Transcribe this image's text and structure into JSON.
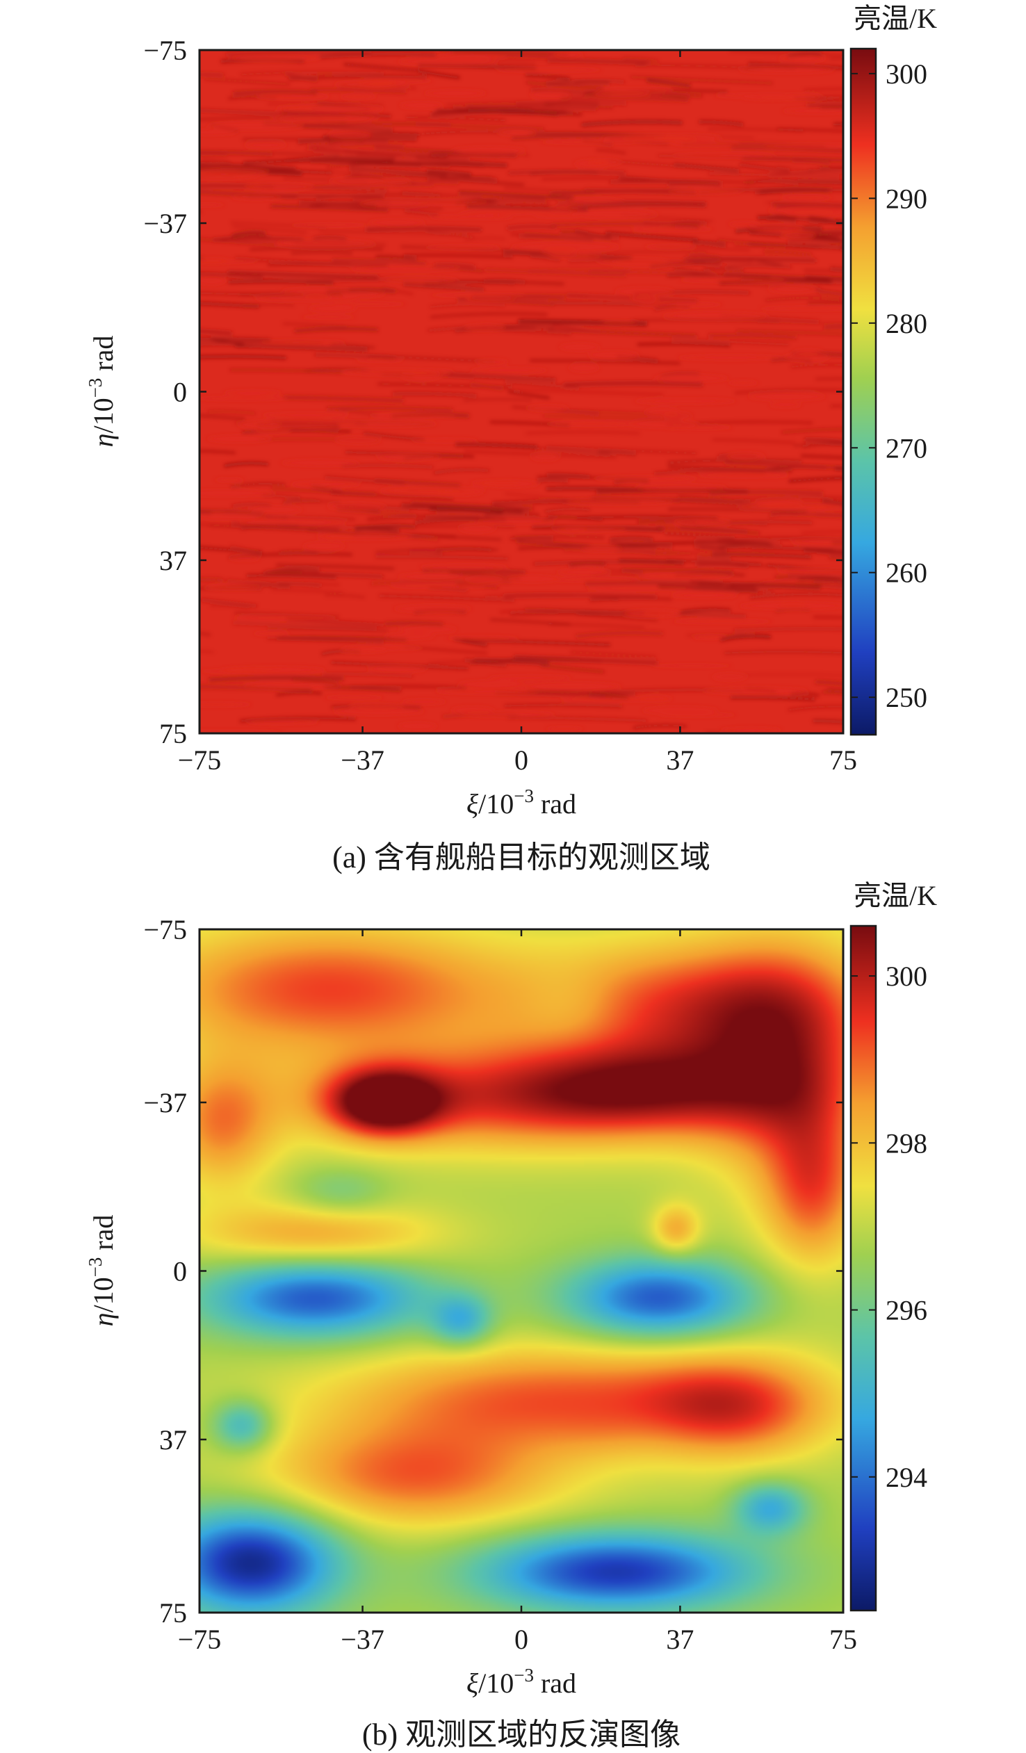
{
  "chart_data": [
    {
      "type": "heatmap",
      "caption": "(a) 含有舰船目标的观测区域",
      "xlabel_sym": "ξ",
      "ylabel_sym": "η",
      "axis_unit": "/10",
      "axis_exp": "−3",
      "axis_unit_tail": " rad",
      "xticks": [
        "−75",
        "−37",
        "0",
        "37",
        "75"
      ],
      "xtick_values": [
        -75,
        -37,
        0,
        37,
        75
      ],
      "yticks": [
        "−75",
        "−37",
        "0",
        "37",
        "75"
      ],
      "ytick_values": [
        -75,
        -37,
        0,
        37,
        75
      ],
      "xlim": [
        -75,
        75
      ],
      "ylim": [
        -75,
        75
      ],
      "y_inverted": true,
      "colorbar_title": "亮温/K",
      "colorbar_ticks": [
        "250",
        "260",
        "270",
        "280",
        "290",
        "300"
      ],
      "colorbar_tick_values": [
        250,
        260,
        270,
        280,
        290,
        300
      ],
      "colorbar_range": [
        247,
        302
      ],
      "colormap": "jet",
      "field_range": [
        293,
        301
      ],
      "field_description": "sea-surface texture, mostly red (~295 K) with darker red streaks"
    },
    {
      "type": "heatmap",
      "caption": "(b) 观测区域的反演图像",
      "xlabel_sym": "ξ",
      "ylabel_sym": "η",
      "axis_unit": "/10",
      "axis_exp": "−3",
      "axis_unit_tail": " rad",
      "xticks": [
        "−75",
        "−37",
        "0",
        "37",
        "75"
      ],
      "xtick_values": [
        -75,
        -37,
        0,
        37,
        75
      ],
      "yticks": [
        "−75",
        "−37",
        "0",
        "37",
        "75"
      ],
      "ytick_values": [
        -75,
        -37,
        0,
        37,
        75
      ],
      "xlim": [
        -75,
        75
      ],
      "ylim": [
        -75,
        75
      ],
      "y_inverted": true,
      "colorbar_title": "亮温/K",
      "colorbar_ticks": [
        "294",
        "296",
        "298",
        "300"
      ],
      "colorbar_tick_values": [
        294,
        296,
        298,
        300
      ],
      "colorbar_range": [
        292.4,
        300.6
      ],
      "colormap": "jet",
      "background_value": 296.8,
      "blobs": [
        {
          "xi": -45,
          "eta": -62,
          "value": 299.3,
          "sx": 30,
          "sy": 10
        },
        {
          "xi": 40,
          "eta": -58,
          "value": 299.3,
          "sx": 26,
          "sy": 10
        },
        {
          "xi": 62,
          "eta": -45,
          "value": 299.1,
          "sx": 14,
          "sy": 18
        },
        {
          "xi": -5,
          "eta": -38,
          "value": 299.2,
          "sx": 34,
          "sy": 8
        },
        {
          "xi": -32,
          "eta": -37,
          "value": 300.5,
          "sx": 9,
          "sy": 5
        },
        {
          "xi": 30,
          "eta": -40,
          "value": 299.0,
          "sx": 22,
          "sy": 7
        },
        {
          "xi": -70,
          "eta": -32,
          "value": 298.6,
          "sx": 9,
          "sy": 10
        },
        {
          "xi": 68,
          "eta": -18,
          "value": 298.8,
          "sx": 8,
          "sy": 12
        },
        {
          "xi": -42,
          "eta": -17,
          "value": 296.0,
          "sx": 8,
          "sy": 4
        },
        {
          "xi": 12,
          "eta": -58,
          "value": 296.3,
          "sx": 8,
          "sy": 6
        },
        {
          "xi": -48,
          "eta": -8,
          "value": 298.4,
          "sx": 20,
          "sy": 5
        },
        {
          "xi": 36,
          "eta": -9,
          "value": 298.3,
          "sx": 4,
          "sy": 4
        },
        {
          "xi": -48,
          "eta": 6,
          "value": 293.7,
          "sx": 18,
          "sy": 6
        },
        {
          "xi": -14,
          "eta": 11,
          "value": 295.0,
          "sx": 5,
          "sy": 4
        },
        {
          "xi": 32,
          "eta": 6,
          "value": 293.7,
          "sx": 15,
          "sy": 6
        },
        {
          "xi": 8,
          "eta": 28,
          "value": 299.1,
          "sx": 36,
          "sy": 8
        },
        {
          "xi": -25,
          "eta": 45,
          "value": 299.0,
          "sx": 24,
          "sy": 8
        },
        {
          "xi": 50,
          "eta": 30,
          "value": 298.8,
          "sx": 15,
          "sy": 8
        },
        {
          "xi": 18,
          "eta": 36,
          "value": 297.0,
          "sx": 8,
          "sy": 4
        },
        {
          "xi": -65,
          "eta": 34,
          "value": 295.0,
          "sx": 5,
          "sy": 4
        },
        {
          "xi": 58,
          "eta": 52,
          "value": 294.8,
          "sx": 6,
          "sy": 4
        },
        {
          "xi": -63,
          "eta": 64,
          "value": 292.8,
          "sx": 14,
          "sy": 8
        },
        {
          "xi": 22,
          "eta": 66,
          "value": 293.2,
          "sx": 22,
          "sy": 6
        }
      ]
    }
  ]
}
